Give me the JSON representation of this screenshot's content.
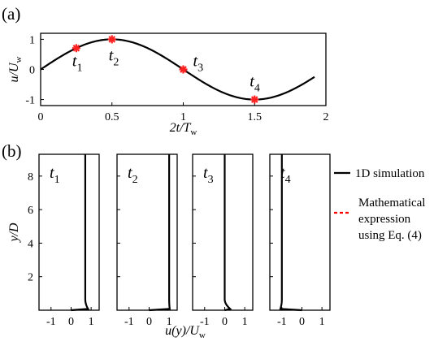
{
  "panels": {
    "a_label": "(a)",
    "b_label": "(b)"
  },
  "chart_data": [
    {
      "type": "line",
      "xlabel": "2t/T_w",
      "ylabel": "u/U_w",
      "xlim": [
        0,
        2
      ],
      "ylim": [
        -1.2,
        1.2
      ],
      "xticks": [
        "0",
        "0.5",
        "1",
        "1.5",
        "2"
      ],
      "yticks": [
        "-1",
        "0",
        "1"
      ],
      "grid": false,
      "series": [
        {
          "x": [
            0,
            0.1,
            0.2,
            0.3,
            0.4,
            0.5,
            0.6,
            0.7,
            0.8,
            0.9,
            1.0,
            1.1,
            1.2,
            1.3,
            1.4,
            1.5,
            1.6,
            1.7,
            1.8,
            1.9,
            1.92
          ],
          "y": [
            0,
            0.309,
            0.588,
            0.809,
            0.951,
            1.0,
            0.951,
            0.809,
            0.588,
            0.309,
            0,
            -0.309,
            -0.588,
            -0.809,
            -0.951,
            -1.0,
            -0.951,
            -0.809,
            -0.588,
            -0.309,
            -0.249
          ],
          "color": "#000000"
        }
      ],
      "markers": [
        {
          "label": "t_1",
          "x": 0.25,
          "y": 0.707
        },
        {
          "label": "t_2",
          "x": 0.5,
          "y": 1.0
        },
        {
          "label": "t_3",
          "x": 1.0,
          "y": 0.0
        },
        {
          "label": "t_4",
          "x": 1.5,
          "y": -1.0
        }
      ],
      "marker_color": "#ff2020"
    },
    {
      "type": "line",
      "xlabel": "u(y)/U_w",
      "ylabel": "y/D",
      "xlim": [
        -1.6,
        1.4
      ],
      "ylim": [
        0,
        9.3
      ],
      "xticks": [
        "-1",
        "0",
        "1"
      ],
      "yticks": [
        "2",
        "4",
        "6",
        "8"
      ],
      "legend": [
        {
          "label": "1D simulation",
          "color": "#000000",
          "style": "solid"
        },
        {
          "label": "Mathematical expression using Eq. (4)",
          "color": "#ff0000",
          "style": "dashed"
        }
      ],
      "legend_position": "right",
      "profiles": [
        {
          "label": "t_1",
          "far_field": 0.707,
          "near_wall_peak": 0.86
        },
        {
          "label": "t_2",
          "far_field": 1.0,
          "near_wall_peak": 1.03
        },
        {
          "label": "t_3",
          "far_field": 0.0,
          "near_wall_peak": 0.3
        },
        {
          "label": "t_4",
          "far_field": -1.0,
          "near_wall_peak": -1.08
        }
      ]
    }
  ]
}
